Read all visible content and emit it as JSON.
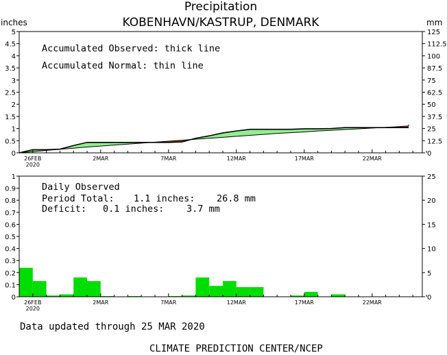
{
  "title": "Precipitation",
  "subtitle": "KOBENHAVN/KASTRUP, DENMARK",
  "left_unit": "inches",
  "right_unit": "mm",
  "top_annotations": [
    "Accumulated Observed: thick line",
    "Accumulated Normal: thin line"
  ],
  "bottom_annotations": {
    "heading": "Daily Observed",
    "total_label": "Period Total:",
    "total_in": "1.1 inches:",
    "total_mm": "26.8 mm",
    "deficit_label": "Deficit:",
    "deficit_in": "0.1 inches:",
    "deficit_mm": "3.7 mm"
  },
  "footer_updated": "Data updated through 25 MAR 2020",
  "footer_credit": "CLIMATE PREDICTION CENTER/NCEP",
  "colors": {
    "surplus": "#90ee90",
    "deficit": "#a0522d",
    "bars": "#00dd00",
    "line": "#000000"
  },
  "chart_data": [
    {
      "type": "area",
      "x_labels": [
        "26FEB",
        "2MAR",
        "7MAR",
        "12MAR",
        "17MAR",
        "22MAR"
      ],
      "x_sublabel": "2020",
      "days": [
        "2020-02-25",
        "2020-02-26",
        "2020-02-27",
        "2020-02-28",
        "2020-02-29",
        "2020-03-01",
        "2020-03-02",
        "2020-03-03",
        "2020-03-04",
        "2020-03-05",
        "2020-03-06",
        "2020-03-07",
        "2020-03-08",
        "2020-03-09",
        "2020-03-10",
        "2020-03-11",
        "2020-03-12",
        "2020-03-13",
        "2020-03-14",
        "2020-03-15",
        "2020-03-16",
        "2020-03-17",
        "2020-03-18",
        "2020-03-19",
        "2020-03-20",
        "2020-03-21",
        "2020-03-22",
        "2020-03-23",
        "2020-03-24",
        "2020-03-25",
        "2020-03-26",
        "2020-03-27"
      ],
      "ylim": [
        0,
        5
      ],
      "yticks": [
        "0",
        "0.5",
        "1",
        "1.5",
        "2",
        "2.5",
        "3",
        "3.5",
        "4",
        "4.5",
        "5"
      ],
      "y2ticks": [
        "0",
        "12.5",
        "25",
        "37.5",
        "50",
        "62.5",
        "75",
        "87.5",
        "100",
        "112.5",
        "125"
      ],
      "series": [
        {
          "values": [
            0,
            0.13,
            0.13,
            0.15,
            0.3,
            0.43,
            0.43,
            0.43,
            0.43,
            0.43,
            0.43,
            0.43,
            0.45,
            0.6,
            0.7,
            0.82,
            0.9,
            0.97,
            0.97,
            0.97,
            0.97,
            0.99,
            0.99,
            1.0,
            1.04,
            1.04,
            1.04,
            1.04,
            1.04,
            1.04,
            1.04,
            1.04
          ]
        },
        {
          "values": [
            0,
            0.05,
            0.1,
            0.15,
            0.19,
            0.24,
            0.28,
            0.32,
            0.36,
            0.4,
            0.44,
            0.48,
            0.52,
            0.56,
            0.6,
            0.64,
            0.68,
            0.72,
            0.76,
            0.8,
            0.83,
            0.86,
            0.9,
            0.93,
            0.96,
            0.99,
            1.02,
            1.05,
            1.08,
            1.11,
            1.14,
            1.17
          ]
        }
      ]
    },
    {
      "type": "bar",
      "x_labels": [
        "26FEB",
        "2MAR",
        "7MAR",
        "12MAR",
        "17MAR",
        "22MAR"
      ],
      "x_sublabel": "2020",
      "ylim": [
        0,
        1
      ],
      "yticks": [
        "0",
        "0.1",
        "0.2",
        "0.3",
        "0.4",
        "0.5",
        "0.6",
        "0.7",
        "0.8",
        "0.9",
        "1"
      ],
      "y2ticks": [
        "0",
        "5",
        "10",
        "15",
        "20",
        "25"
      ],
      "values": [
        0.24,
        0.13,
        0.01,
        0.02,
        0.16,
        0.13,
        0.005,
        0,
        0.005,
        0,
        0,
        0.005,
        0.01,
        0.16,
        0.09,
        0.13,
        0.08,
        0.08,
        0,
        0,
        0.01,
        0.04,
        0,
        0.02,
        0,
        0,
        0,
        0,
        0,
        0,
        0,
        0
      ]
    }
  ]
}
